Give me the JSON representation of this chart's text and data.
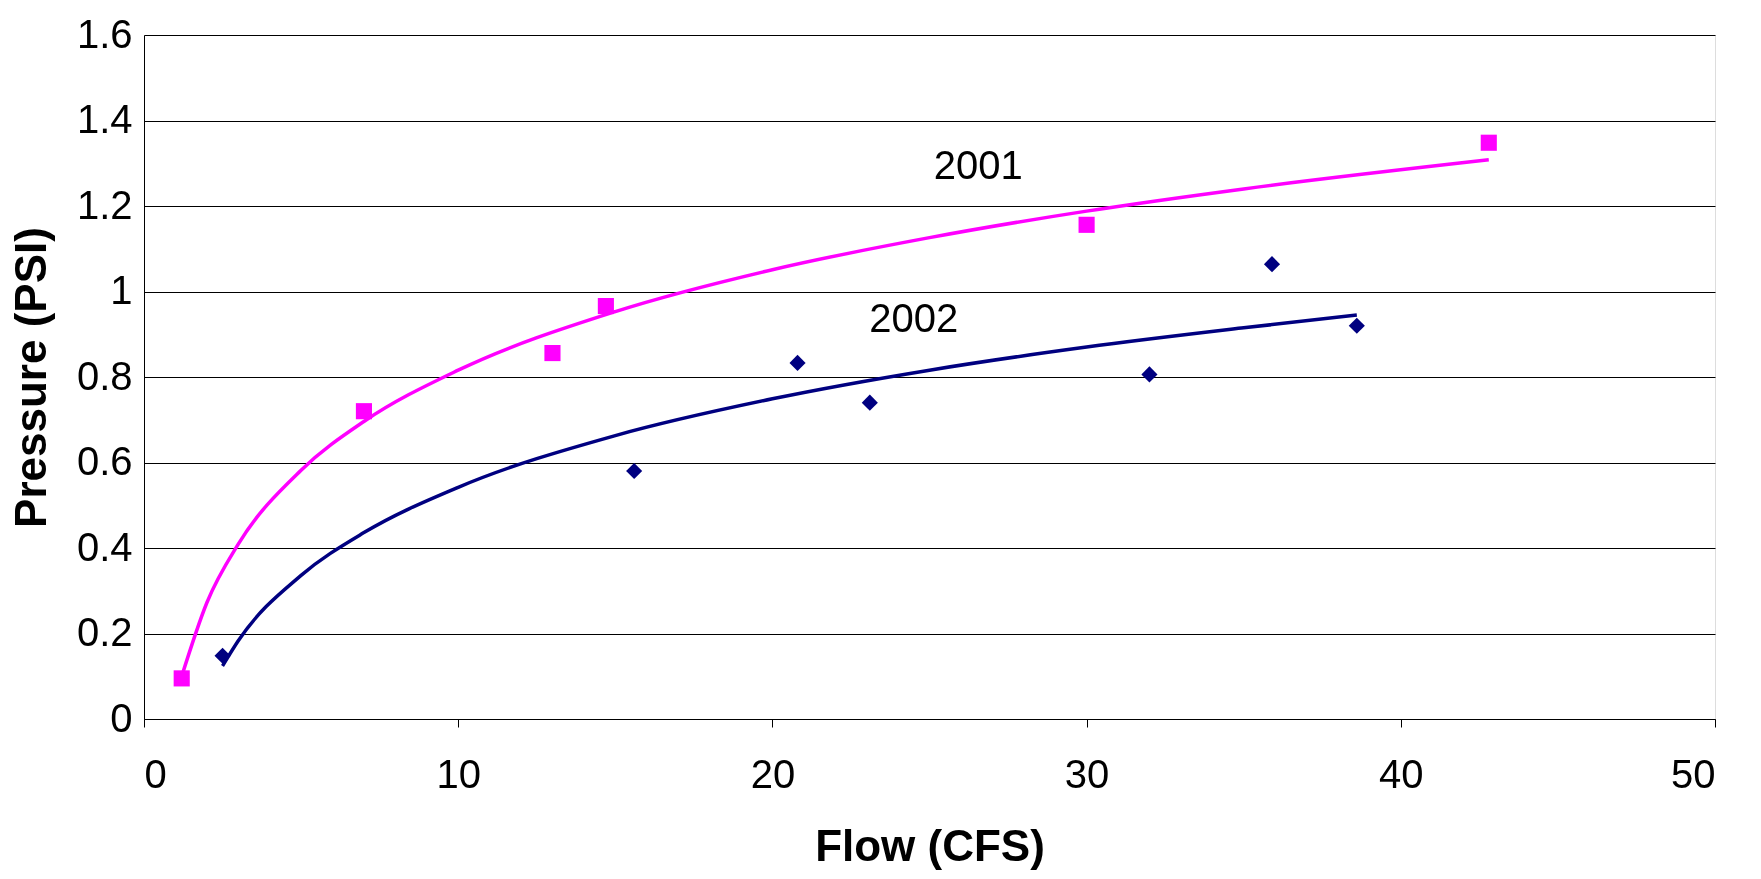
{
  "chart_data": {
    "type": "scatter",
    "xlabel": "Flow (CFS)",
    "ylabel": "Pressure (PSI)",
    "xlim": [
      0,
      50
    ],
    "xticks": [
      0,
      10,
      20,
      30,
      40,
      50
    ],
    "ylim": [
      0,
      1.6
    ],
    "yticks": [
      0,
      0.2,
      0.4,
      0.6,
      0.8,
      1,
      1.2,
      1.4,
      1.6
    ],
    "grid": "y",
    "series": [
      {
        "marker": "square",
        "color": "#ff00ff",
        "x": [
          1.2,
          7.0,
          13.0,
          14.7,
          30.0,
          42.8
        ],
        "values": [
          0.095,
          0.72,
          0.856,
          0.966,
          1.156,
          1.348
        ]
      },
      {
        "marker": "diamond",
        "color": "#000080",
        "x": [
          2.5,
          15.6,
          20.8,
          23.1,
          32.0,
          35.9,
          38.6
        ],
        "values": [
          0.148,
          0.58,
          0.833,
          0.74,
          0.806,
          1.064,
          0.92
        ]
      },
      {
        "type": "line",
        "marker": "none",
        "color": "#ff00ff",
        "x": [
          1.2,
          2,
          3,
          5,
          7,
          10,
          15,
          20,
          25,
          30,
          35,
          42.8
        ],
        "values": [
          0.1,
          0.272,
          0.409,
          0.582,
          0.696,
          0.816,
          0.953,
          1.051,
          1.126,
          1.188,
          1.24,
          1.308
        ]
      },
      {
        "type": "line",
        "marker": "none",
        "color": "#000080",
        "x": [
          2.5,
          3,
          5,
          7,
          10,
          15,
          20,
          25,
          30,
          35,
          38.6
        ],
        "values": [
          0.124,
          0.183,
          0.336,
          0.436,
          0.542,
          0.663,
          0.749,
          0.816,
          0.87,
          0.915,
          0.945
        ]
      }
    ],
    "annotations": [
      "2001",
      "2002"
    ]
  }
}
